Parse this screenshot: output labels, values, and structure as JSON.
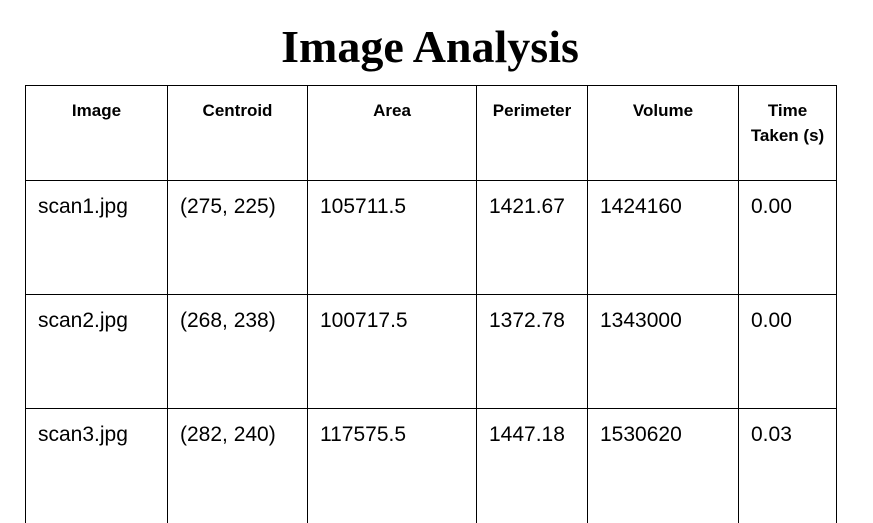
{
  "title": "Image Analysis",
  "table": {
    "headers": [
      "Image",
      "Centroid",
      "Area",
      "Perimeter",
      "Volume",
      "Time Taken (s)"
    ],
    "rows": [
      [
        "scan1.jpg",
        "(275, 225)",
        "105711.5",
        "1421.67",
        "1424160",
        "0.00"
      ],
      [
        "scan2.jpg",
        "(268, 238)",
        "100717.5",
        "1372.78",
        "1343000",
        "0.00"
      ],
      [
        "scan3.jpg",
        "(282, 240)",
        "117575.5",
        "1447.18",
        "1530620",
        "0.03"
      ]
    ]
  }
}
